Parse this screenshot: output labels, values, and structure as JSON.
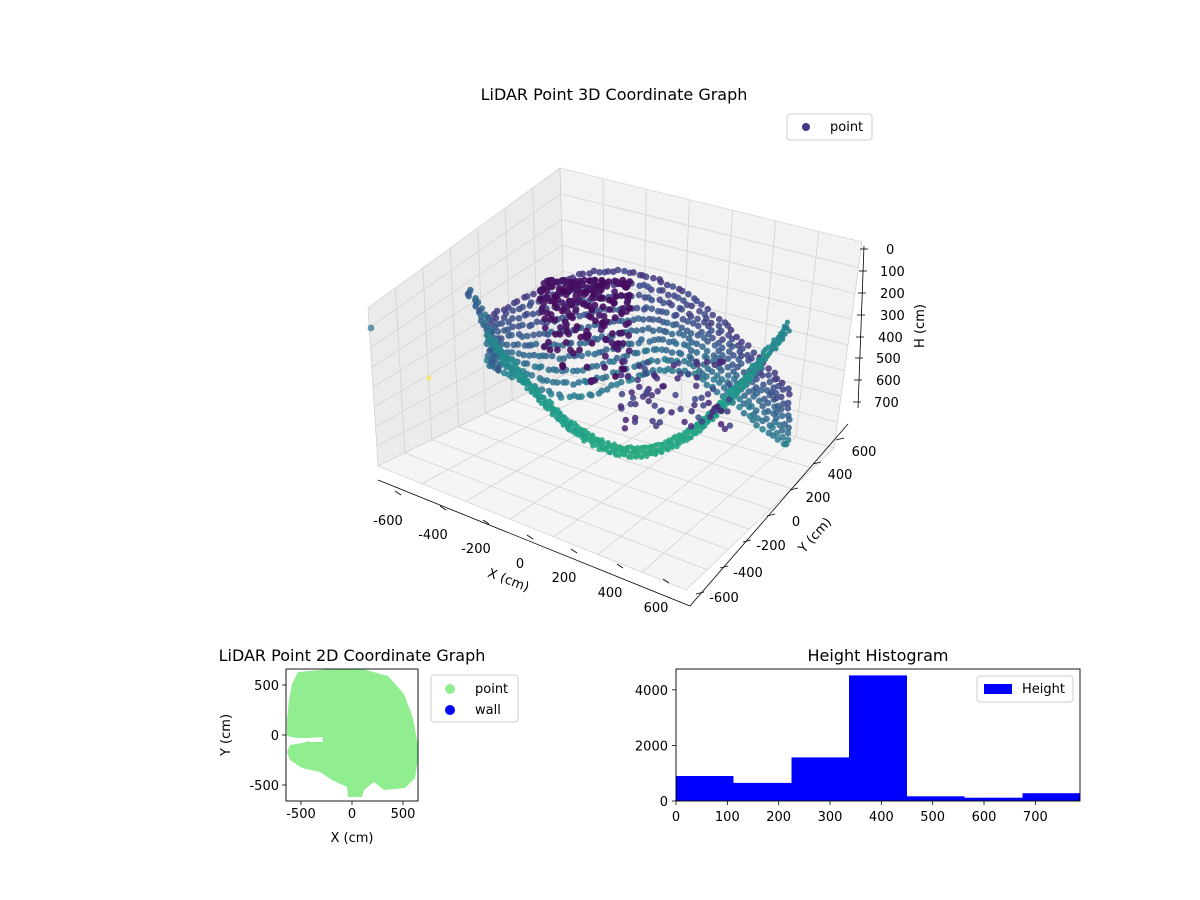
{
  "chart_data": [
    {
      "type": "scatter",
      "projection": "3d",
      "title": "LiDAR Point 3D Coordinate Graph",
      "xlabel": "X (cm)",
      "ylabel": "Y (cm)",
      "zlabel": "H (cm)",
      "xticks": [
        -600,
        -400,
        -200,
        0,
        200,
        400,
        600
      ],
      "yticks": [
        -600,
        -400,
        -200,
        0,
        200,
        400,
        600
      ],
      "zticks": [
        0,
        100,
        200,
        300,
        400,
        500,
        600,
        700
      ],
      "xlim": [
        -650,
        650
      ],
      "ylim": [
        -650,
        650
      ],
      "zlim": [
        780,
        0
      ],
      "colormap": "viridis",
      "legend": {
        "placement": "top-right",
        "entries": [
          {
            "label": "point",
            "color": "#453781"
          }
        ]
      },
      "grid": true
    },
    {
      "type": "scatter",
      "title": "LiDAR Point 2D Coordinate Graph",
      "xlabel": "X (cm)",
      "ylabel": "Y (cm)",
      "xticks": [
        -500,
        0,
        500
      ],
      "yticks": [
        500,
        0,
        -500
      ],
      "xlim": [
        -650,
        650
      ],
      "ylim": [
        -650,
        650
      ],
      "series": [
        {
          "name": "point",
          "color": "#90ee90"
        },
        {
          "name": "wall",
          "color": "#0000ff"
        }
      ],
      "legend": {
        "placement": "outside-right"
      }
    },
    {
      "type": "bar",
      "title": "Height Histogram",
      "bins": [
        [
          0,
          112,
          900
        ],
        [
          112,
          225,
          650
        ],
        [
          225,
          337,
          1570
        ],
        [
          337,
          450,
          4520
        ],
        [
          450,
          562,
          170
        ],
        [
          562,
          675,
          120
        ],
        [
          675,
          787,
          280
        ]
      ],
      "xticks": [
        0,
        100,
        200,
        300,
        400,
        500,
        600,
        700
      ],
      "yticks": [
        0,
        2000,
        4000
      ],
      "xlim": [
        0,
        787
      ],
      "ylim": [
        0,
        4750
      ],
      "color": "#0000ff",
      "series": [
        {
          "name": "Height",
          "color": "#0000ff"
        }
      ],
      "legend": {
        "placement": "top-right"
      }
    }
  ]
}
